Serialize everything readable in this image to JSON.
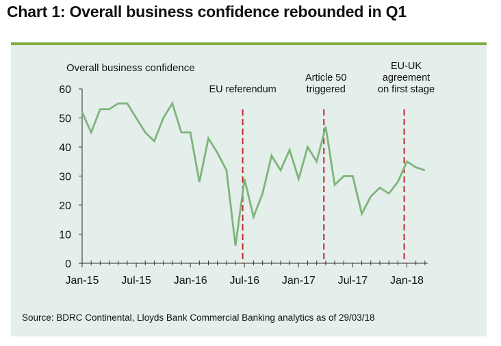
{
  "title": "Chart 1: Overall business confidence rebounded in Q1",
  "source": "Source: BDRC Continental, Lloyds Bank Commercial Banking analytics as of 29/03/18",
  "colors": {
    "line": "#7db57a",
    "event_line": "#c0272d",
    "panel": "#e4eeea",
    "rule": "#7fac3f"
  },
  "chart_data": {
    "type": "line",
    "title": "Chart 1: Overall business confidence rebounded in Q1",
    "ylabel": "Overall business confidence",
    "xlabel": "",
    "ylim": [
      0,
      60
    ],
    "yticks": [
      0,
      10,
      20,
      30,
      40,
      50,
      60
    ],
    "xtick_labels": [
      "Jan-15",
      "Jul-15",
      "Jan-16",
      "Jul-16",
      "Jan-17",
      "Jul-17",
      "Jan-18"
    ],
    "xtick_label_month_index": [
      0,
      6,
      12,
      18,
      24,
      30,
      36
    ],
    "grid": false,
    "legend": "none",
    "x": [
      "Jan-15",
      "Feb-15",
      "Mar-15",
      "Apr-15",
      "May-15",
      "Jun-15",
      "Jul-15",
      "Aug-15",
      "Sep-15",
      "Oct-15",
      "Nov-15",
      "Dec-15",
      "Jan-16",
      "Feb-16",
      "Mar-16",
      "Apr-16",
      "May-16",
      "Jun-16",
      "Jul-16",
      "Aug-16",
      "Sep-16",
      "Oct-16",
      "Nov-16",
      "Dec-16",
      "Jan-17",
      "Feb-17",
      "Mar-17",
      "Apr-17",
      "May-17",
      "Jun-17",
      "Jul-17",
      "Aug-17",
      "Sep-17",
      "Oct-17",
      "Nov-17",
      "Dec-17",
      "Jan-18",
      "Feb-18",
      "Mar-18"
    ],
    "series": [
      {
        "name": "Overall business confidence",
        "values": [
          52,
          45,
          53,
          53,
          55,
          55,
          50,
          45,
          42,
          50,
          55,
          45,
          45,
          28,
          43,
          38,
          32,
          6,
          29,
          16,
          24,
          37,
          32,
          39,
          29,
          40,
          35,
          47,
          27,
          30,
          30,
          17,
          23,
          26,
          24,
          28,
          35,
          33,
          32
        ]
      }
    ],
    "annotations": [
      {
        "label_lines": [
          "EU referendum"
        ],
        "month_index": 17.8
      },
      {
        "label_lines": [
          "Article 50",
          "triggered"
        ],
        "month_index": 26.8
      },
      {
        "label_lines": [
          "EU-UK",
          "agreement",
          "on first stage"
        ],
        "month_index": 35.7
      }
    ]
  }
}
